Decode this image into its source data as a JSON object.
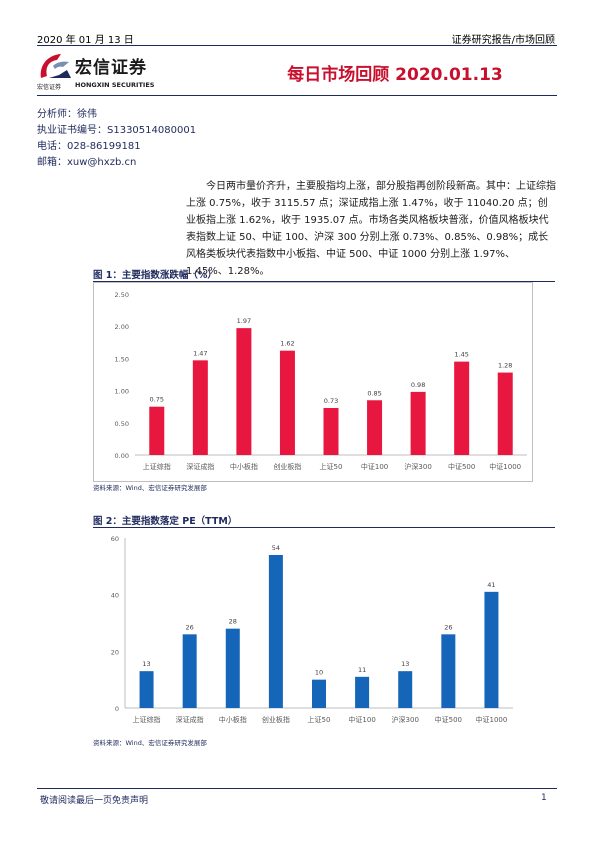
{
  "header": {
    "date": "2020 年 01 月 13 日",
    "category": "证券研究报告/市场回顾"
  },
  "logo": {
    "name": "宏信证券",
    "sub_cn": "宏信证券",
    "sub_en": "HONGXIN SECURITIES"
  },
  "title": "每日市场回顾 2020.01.13",
  "analyst": {
    "name_line": "分析师：徐伟",
    "cert_line": "执业证书编号：S1330514080001",
    "phone_line": "电话：028-86199181",
    "email_line": "邮箱：xuw@hxzb.cn"
  },
  "summary": "今日两市量价齐升，主要股指均上涨，部分股指再创阶段新高。其中：上证综指上涨 0.75%，收于 3115.57 点；深证成指上涨 1.47%，收于 11040.20 点；创业板指上涨 1.62%，收于 1935.07 点。市场各类风格板块普涨，价值风格板块代表指数上证 50、中证 100、沪深 300 分别上涨 0.73%、0.85%、0.98%；成长风格类板块代表指数中小板指、中证 500、中证 1000 分别上涨 1.97%、1.45%、1.28%。",
  "figure1": {
    "title": "图 1：主要指数涨跌幅（%）",
    "source": "资料来源：Wind、宏信证券研究发展部"
  },
  "figure2": {
    "title": "图 2：主要指数落定 PE（TTM）",
    "source": "资料来源：Wind、宏信证券研究发展部"
  },
  "chart_data": [
    {
      "type": "bar",
      "categories": [
        "上证综指",
        "深证成指",
        "中小板指",
        "创业板指",
        "上证50",
        "中证100",
        "沪深300",
        "中证500",
        "中证1000"
      ],
      "values": [
        0.75,
        1.47,
        1.97,
        1.62,
        0.73,
        0.85,
        0.98,
        1.45,
        1.28
      ],
      "value_labels": [
        "0.75",
        "1.47",
        "1.97",
        "1.62",
        "0.73",
        "0.85",
        "0.98",
        "1.45",
        "1.28"
      ],
      "yticks": [
        "0.00",
        "0.50",
        "1.00",
        "1.50",
        "2.00",
        "2.50"
      ],
      "ylim": [
        0,
        2.5
      ],
      "color": "#e8173f",
      "grid": false,
      "bordered": true
    },
    {
      "type": "bar",
      "categories": [
        "上证综指",
        "深证成指",
        "中小板指",
        "创业板指",
        "上证50",
        "中证100",
        "沪深300",
        "中证500",
        "中证1000"
      ],
      "values": [
        13,
        26,
        28,
        54,
        10,
        11,
        13,
        26,
        41
      ],
      "value_labels": [
        "13",
        "26",
        "28",
        "54",
        "10",
        "11",
        "13",
        "26",
        "41"
      ],
      "yticks": [
        "0",
        "20",
        "40",
        "60"
      ],
      "ylim": [
        0,
        60
      ],
      "color": "#1565b8",
      "grid": false,
      "bordered": false
    }
  ],
  "footer": {
    "disclaimer": "敬请阅读最后一页免责声明",
    "page": "1"
  }
}
